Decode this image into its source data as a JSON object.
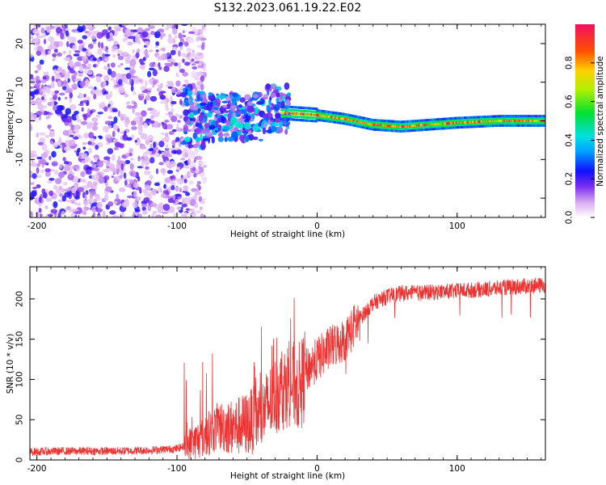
{
  "figure_title": "S132.2023.061.19.22.E02",
  "chart_data": [
    {
      "type": "heatmap",
      "xlabel": "Height of straight line (km)",
      "ylabel": "Frequency (Hz)",
      "xlim": [
        -205,
        163
      ],
      "ylim": [
        -25,
        25
      ],
      "xticks": [
        -200,
        -100,
        0,
        100
      ],
      "yticks": [
        -20,
        -10,
        0,
        10,
        20
      ],
      "colorbar": {
        "label": "Normalized spectral amplitude",
        "range": [
          0,
          1
        ],
        "ticks": [
          "0.0",
          "0.2",
          "0.4",
          "0.6",
          "0.8"
        ]
      },
      "description_series": [
        {
          "name": "noise",
          "x_range": [
            -205,
            -88
          ],
          "frequency_range": [
            -25,
            25
          ],
          "amplitude": [
            0.05,
            0.25
          ]
        },
        {
          "name": "transition",
          "x_range": [
            -95,
            -20
          ],
          "frequency_range": [
            -5,
            10
          ],
          "amplitude": [
            0.1,
            0.45
          ]
        },
        {
          "name": "signal",
          "x_range": [
            -25,
            163
          ],
          "frequency_center": [
            2,
            1.5,
            0.5,
            -1,
            -1.5,
            -1,
            -0.5,
            0,
            0
          ],
          "frequency_center_x": [
            -20,
            0,
            20,
            40,
            60,
            80,
            100,
            130,
            160
          ],
          "amplitude": [
            0.6,
            1.0
          ]
        }
      ]
    },
    {
      "type": "line",
      "xlabel": "Height of straight line (km)",
      "ylabel": "SNR (10 * v/v)",
      "xlim": [
        -205,
        163
      ],
      "ylim": [
        0,
        240
      ],
      "xticks": [
        -200,
        -100,
        0,
        100
      ],
      "yticks": [
        0,
        50,
        100,
        150,
        200
      ],
      "color": "#ee3333",
      "series": [
        {
          "x": [
            -205,
            -180,
            -160,
            -140,
            -120,
            -100,
            -90,
            -80,
            -70,
            -60,
            -50,
            -40,
            -30,
            -20,
            -12,
            -8,
            0,
            10,
            20,
            30,
            40,
            50,
            60,
            80,
            100,
            120,
            140,
            163
          ],
          "y": [
            10,
            11,
            11,
            11,
            12,
            14,
            20,
            30,
            42,
            40,
            45,
            55,
            80,
            95,
            90,
            110,
            125,
            140,
            150,
            175,
            195,
            203,
            207,
            208,
            210,
            212,
            215,
            217
          ]
        }
      ]
    }
  ]
}
